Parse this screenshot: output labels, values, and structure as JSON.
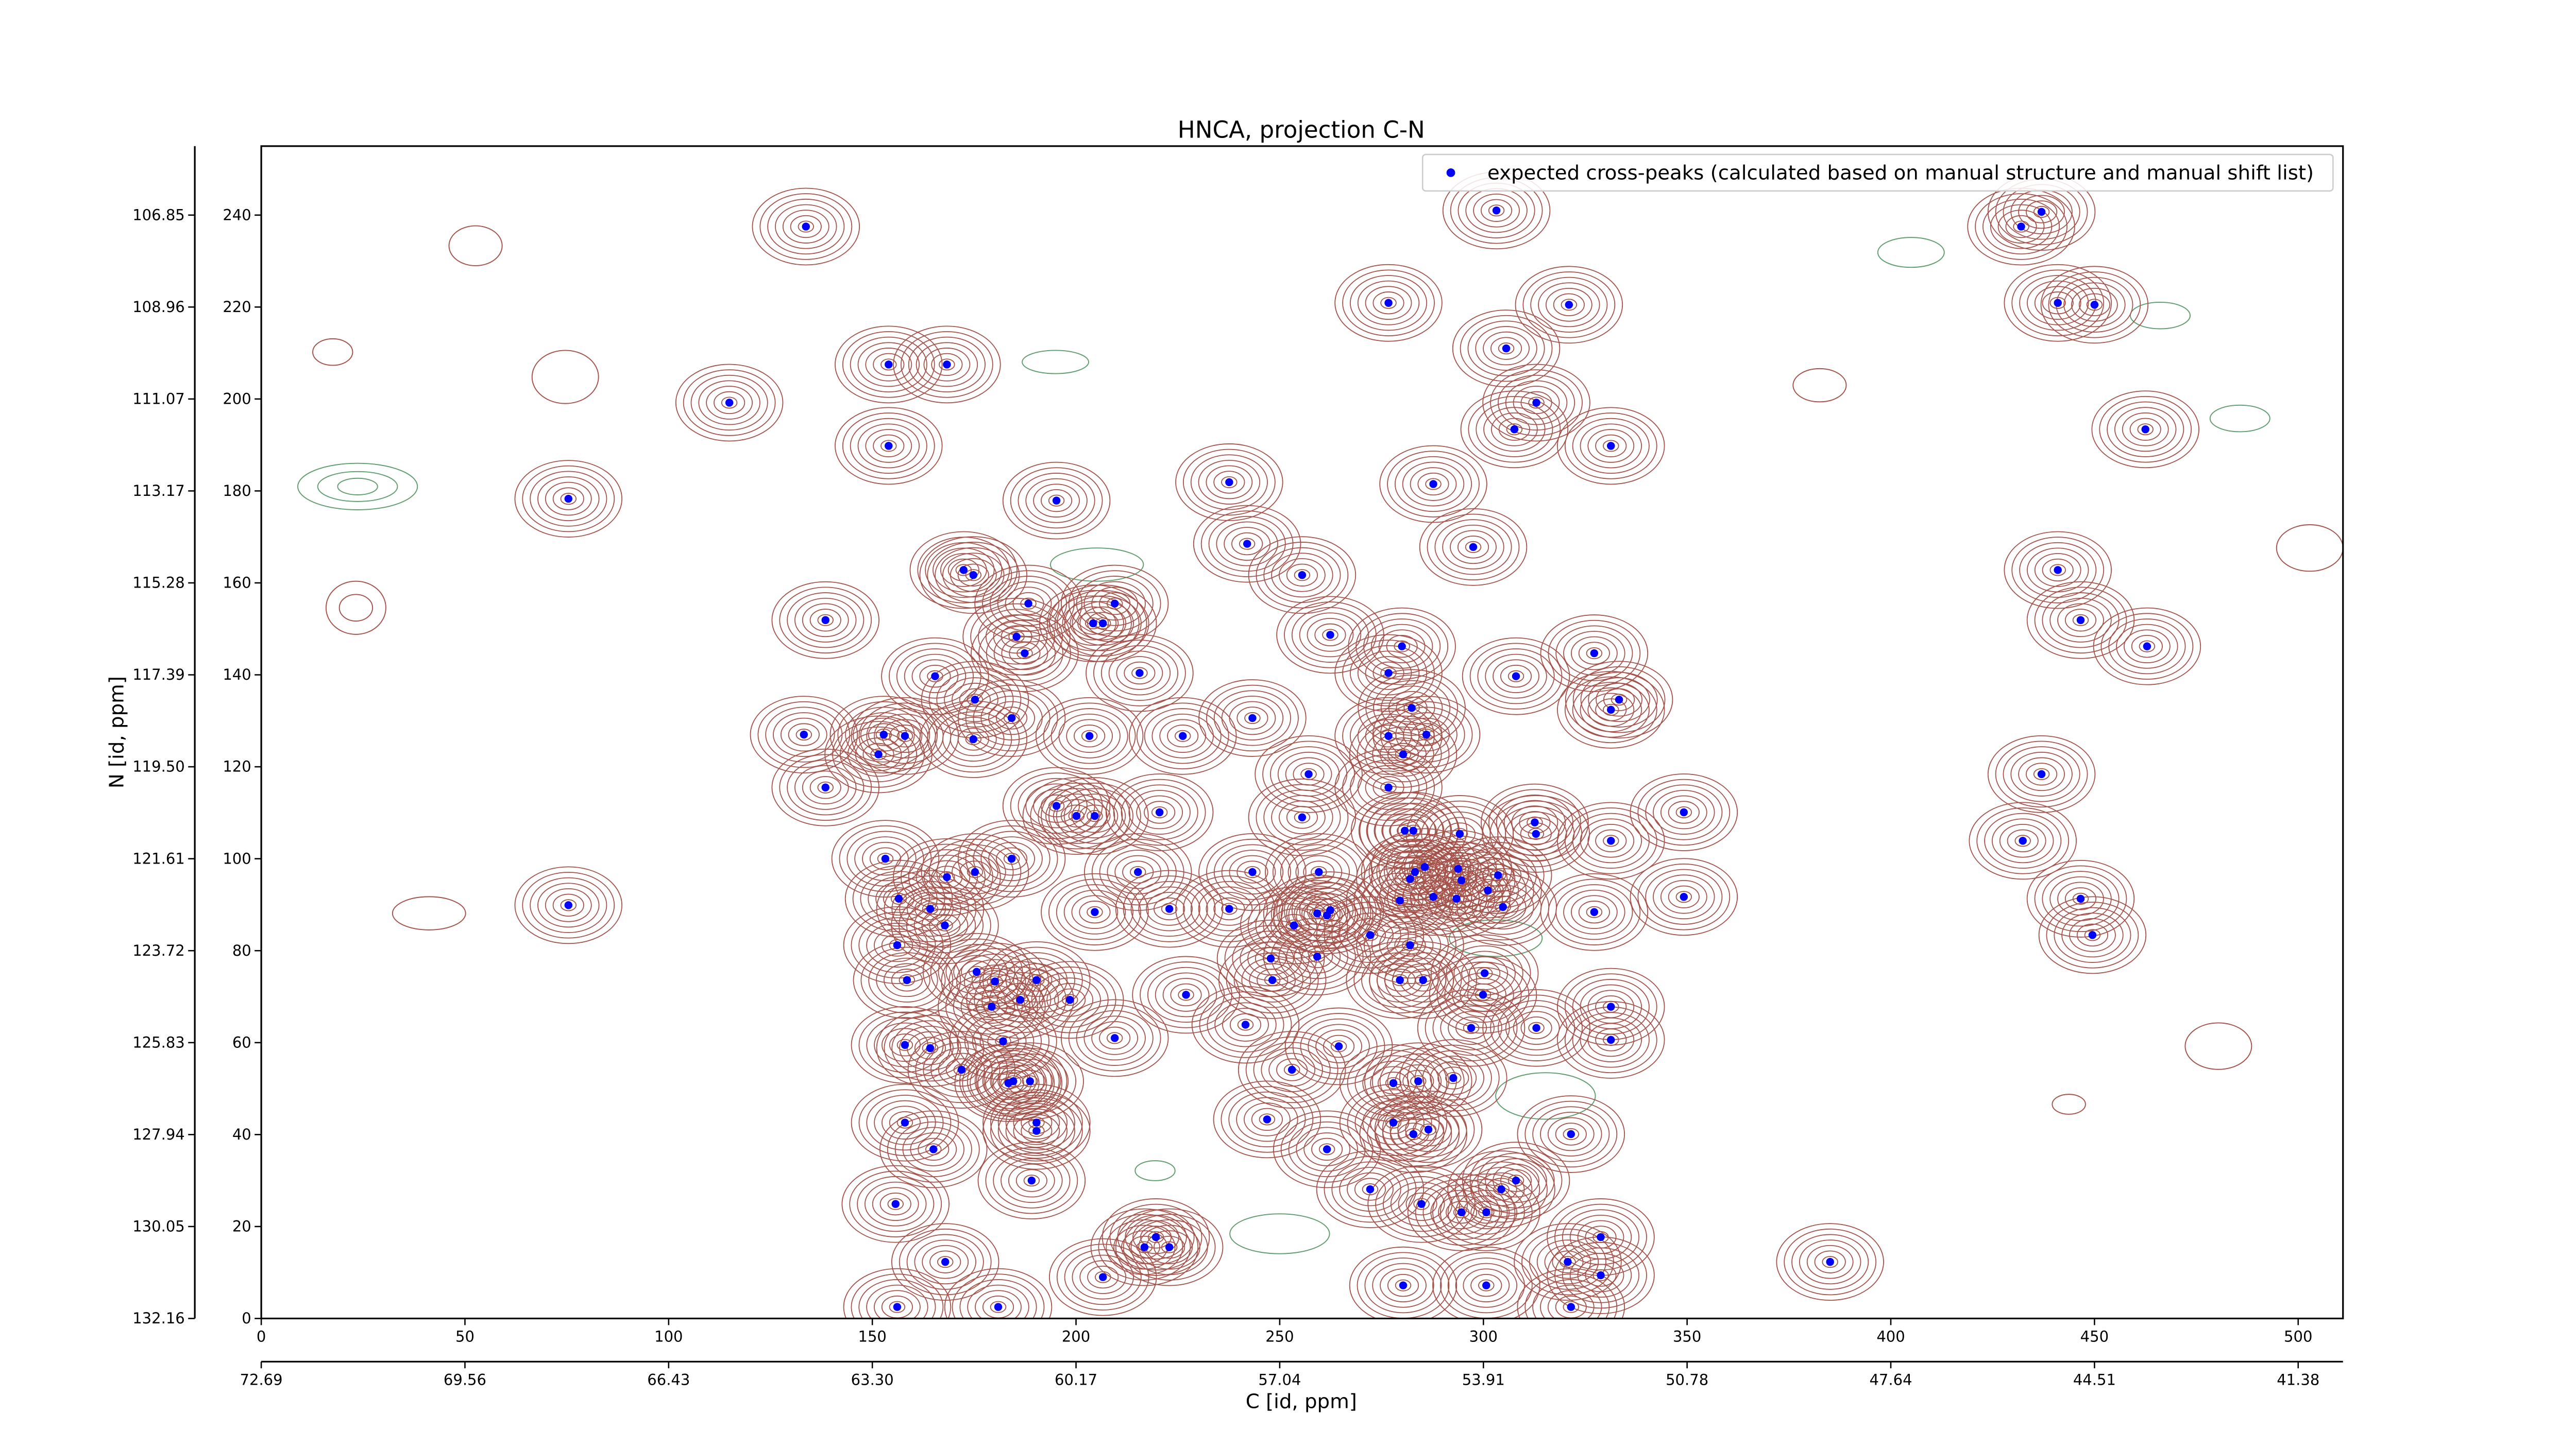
{
  "chart_data": {
    "type": "scatter",
    "title": "HNCA, projection C-N",
    "xlabel": "C [id, ppm]",
    "ylabel": "N [id, ppm]",
    "legend": "upper right",
    "contour_color": "#a5524a",
    "series": [
      {
        "name": "expected cross-peaks (calculated based on manual structure and manual shift list)",
        "color": "#0000ff",
        "x": [
          133.7,
          303.2,
          432,
          437,
          276.7,
          321,
          441,
          450,
          154,
          168.3,
          305.6,
          114.9,
          313,
          154,
          307.6,
          331.3,
          462.5,
          75.4,
          195.2,
          237.6,
          287.7,
          242,
          297.5,
          172.4,
          174.8,
          255.5,
          441,
          138.5,
          188.3,
          204.2,
          206.6,
          209.5,
          185.4,
          187.4,
          262.4,
          446.6,
          462.9,
          280,
          327.2,
          165.4,
          215.6,
          276.7,
          308,
          175.2,
          333.3,
          331.3,
          133.2,
          152.8,
          158,
          151.5,
          174.8,
          184.2,
          203.3,
          226.2,
          243.3,
          276.7,
          282.4,
          286,
          280.3,
          138.5,
          257.1,
          437,
          276.7,
          195.2,
          200.1,
          204.6,
          220.5,
          255.5,
          349.2,
          312.6,
          280.7,
          282.8,
          294.2,
          312.9,
          331.3,
          432.4,
          153.2,
          184.2,
          175.2,
          168.3,
          215.2,
          243.3,
          259.6,
          283.2,
          285.6,
          282,
          293.8,
          294.6,
          303.6,
          301.1,
          293.4,
          287.7,
          279.5,
          304.8,
          156.5,
          75.4,
          164.2,
          167.8,
          204.6,
          222.9,
          237.6,
          253.5,
          259.2,
          262.4,
          261.6,
          272.2,
          327.2,
          349.2,
          446.6,
          449.5,
          156.1,
          247.8,
          259.2,
          282,
          175.6,
          158.5,
          180.1,
          190.3,
          198.5,
          186.3,
          179.3,
          227,
          248.2,
          279.5,
          285.2,
          300.3,
          299.9,
          331.3,
          313,
          297,
          331.3,
          241.6,
          158,
          164.2,
          182.1,
          209.5,
          264.5,
          171.9,
          184.6,
          183.4,
          188.7,
          253,
          277.9,
          284,
          292.6,
          190.3,
          190.3,
          158,
          246.9,
          277.9,
          286.5,
          282.8,
          321.5,
          165,
          261.6,
          189.1,
          308,
          304.4,
          272.2,
          284.8,
          294.6,
          300.7,
          155.7,
          219.6,
          216.8,
          222.9,
          328.8,
          167.9,
          206.6,
          320.7,
          328.8,
          280.3,
          300.7,
          385.1,
          156.1,
          180.9,
          321.5
        ],
        "values": [
          237.5,
          241,
          237.5,
          240.7,
          220.9,
          220.5,
          220.9,
          220.5,
          207.5,
          207.5,
          211,
          199.2,
          199.2,
          189.8,
          193.4,
          189.8,
          193.4,
          178.3,
          177.9,
          181.9,
          181.5,
          168.5,
          167.8,
          162.8,
          161.7,
          161.7,
          162.8,
          151.9,
          155.5,
          151.2,
          151.2,
          155.5,
          148.3,
          144.7,
          148.7,
          151.9,
          146.2,
          146.2,
          144.7,
          139.7,
          140.4,
          140.4,
          139.7,
          134.6,
          134.6,
          132.4,
          127,
          127,
          126.7,
          122.7,
          126,
          130.6,
          126.7,
          126.7,
          130.6,
          126.7,
          132.8,
          127,
          122.7,
          115.5,
          118.4,
          118.4,
          115.5,
          111.5,
          109.3,
          109.3,
          110.1,
          109,
          110.1,
          107.9,
          106.1,
          106.1,
          105.4,
          105.4,
          103.9,
          103.9,
          100,
          100,
          97.1,
          96,
          97.1,
          97.1,
          97.1,
          97.1,
          98.2,
          95.6,
          97.8,
          95.3,
          96.4,
          93.1,
          91.3,
          91.7,
          90.9,
          89.5,
          91.3,
          89.9,
          89.1,
          85.5,
          88.4,
          89.1,
          89.1,
          85.5,
          88.1,
          88.8,
          87.7,
          83.4,
          88.4,
          91.7,
          91.3,
          83.4,
          81.2,
          78.3,
          78.7,
          81.2,
          75.4,
          73.6,
          73.3,
          73.6,
          69.3,
          69.3,
          67.8,
          70.4,
          73.6,
          73.6,
          73.6,
          75.1,
          70.4,
          67.8,
          63.2,
          63.2,
          60.6,
          63.9,
          59.5,
          58.8,
          60.3,
          61,
          59.2,
          54.1,
          51.6,
          51.2,
          51.6,
          54.1,
          51.2,
          51.6,
          52.3,
          42.6,
          40.8,
          42.6,
          43.3,
          42.6,
          41.1,
          40.1,
          40.1,
          36.8,
          36.8,
          30,
          30,
          28.1,
          28.1,
          24.9,
          23.1,
          23.1,
          24.9,
          17.7,
          15.5,
          15.5,
          17.7,
          12.3,
          9,
          12.3,
          9.4,
          7.2,
          7.2,
          12.3,
          2.5,
          2.5,
          2.5
        ]
      }
    ],
    "xlim": [
      0,
      511
    ],
    "ylim": [
      0,
      255
    ],
    "xticks": [
      0,
      50,
      100,
      150,
      200,
      250,
      300,
      350,
      400,
      450,
      500
    ],
    "yticks": [
      0,
      20,
      40,
      60,
      80,
      100,
      120,
      140,
      160,
      180,
      200,
      220,
      240
    ],
    "x2ticks": [
      {
        "value": 0,
        "label": "72.69"
      },
      {
        "value": 50,
        "label": "69.56"
      },
      {
        "value": 100,
        "label": "66.43"
      },
      {
        "value": 150,
        "label": "63.30"
      },
      {
        "value": 200,
        "label": "60.17"
      },
      {
        "value": 250,
        "label": "57.04"
      },
      {
        "value": 300,
        "label": "53.91"
      },
      {
        "value": 350,
        "label": "50.78"
      },
      {
        "value": 400,
        "label": "47.64"
      },
      {
        "value": 450,
        "label": "44.51"
      },
      {
        "value": 500,
        "label": "41.38"
      }
    ],
    "y2ticks": [
      {
        "value": 0,
        "label": "132.16"
      },
      {
        "value": 20,
        "label": "130.05"
      },
      {
        "value": 40,
        "label": "127.94"
      },
      {
        "value": 60,
        "label": "125.83"
      },
      {
        "value": 80,
        "label": "123.72"
      },
      {
        "value": 100,
        "label": "121.61"
      },
      {
        "value": 120,
        "label": "119.50"
      },
      {
        "value": 140,
        "label": "117.39"
      },
      {
        "value": 160,
        "label": "115.28"
      },
      {
        "value": 180,
        "label": "113.17"
      },
      {
        "value": 200,
        "label": "111.07"
      },
      {
        "value": 220,
        "label": "108.96"
      },
      {
        "value": 240,
        "label": "106.85"
      }
    ]
  }
}
